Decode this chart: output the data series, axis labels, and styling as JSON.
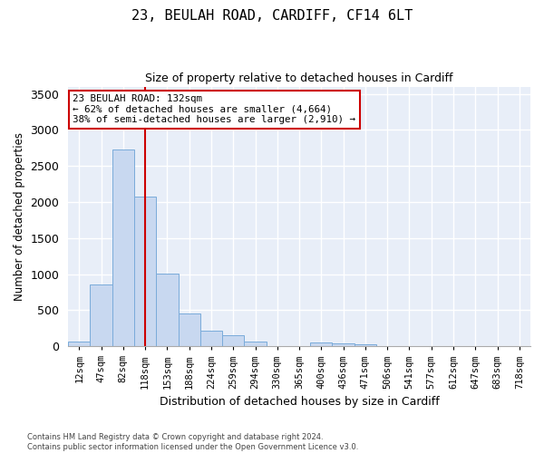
{
  "title_line1": "23, BEULAH ROAD, CARDIFF, CF14 6LT",
  "title_line2": "Size of property relative to detached houses in Cardiff",
  "xlabel": "Distribution of detached houses by size in Cardiff",
  "ylabel": "Number of detached properties",
  "categories": [
    "12sqm",
    "47sqm",
    "82sqm",
    "118sqm",
    "153sqm",
    "188sqm",
    "224sqm",
    "259sqm",
    "294sqm",
    "330sqm",
    "365sqm",
    "400sqm",
    "436sqm",
    "471sqm",
    "506sqm",
    "541sqm",
    "577sqm",
    "612sqm",
    "647sqm",
    "683sqm",
    "718sqm"
  ],
  "values": [
    60,
    860,
    2730,
    2080,
    1010,
    460,
    210,
    150,
    65,
    0,
    0,
    55,
    45,
    30,
    0,
    0,
    0,
    0,
    0,
    0,
    0
  ],
  "bar_color": "#c8d8f0",
  "bar_edge_color": "#7aabda",
  "vline_color": "#cc0000",
  "vline_x": 3.0,
  "annotation_title": "23 BEULAH ROAD: 132sqm",
  "annotation_line1": "← 62% of detached houses are smaller (4,664)",
  "annotation_line2": "38% of semi-detached houses are larger (2,910) →",
  "annotation_box_color": "#ffffff",
  "annotation_box_edge_color": "#cc0000",
  "ylim": [
    0,
    3600
  ],
  "yticks": [
    0,
    500,
    1000,
    1500,
    2000,
    2500,
    3000,
    3500
  ],
  "background_color": "#e8eef8",
  "grid_color": "#ffffff",
  "fig_bg_color": "#ffffff",
  "footer_line1": "Contains HM Land Registry data © Crown copyright and database right 2024.",
  "footer_line2": "Contains public sector information licensed under the Open Government Licence v3.0."
}
